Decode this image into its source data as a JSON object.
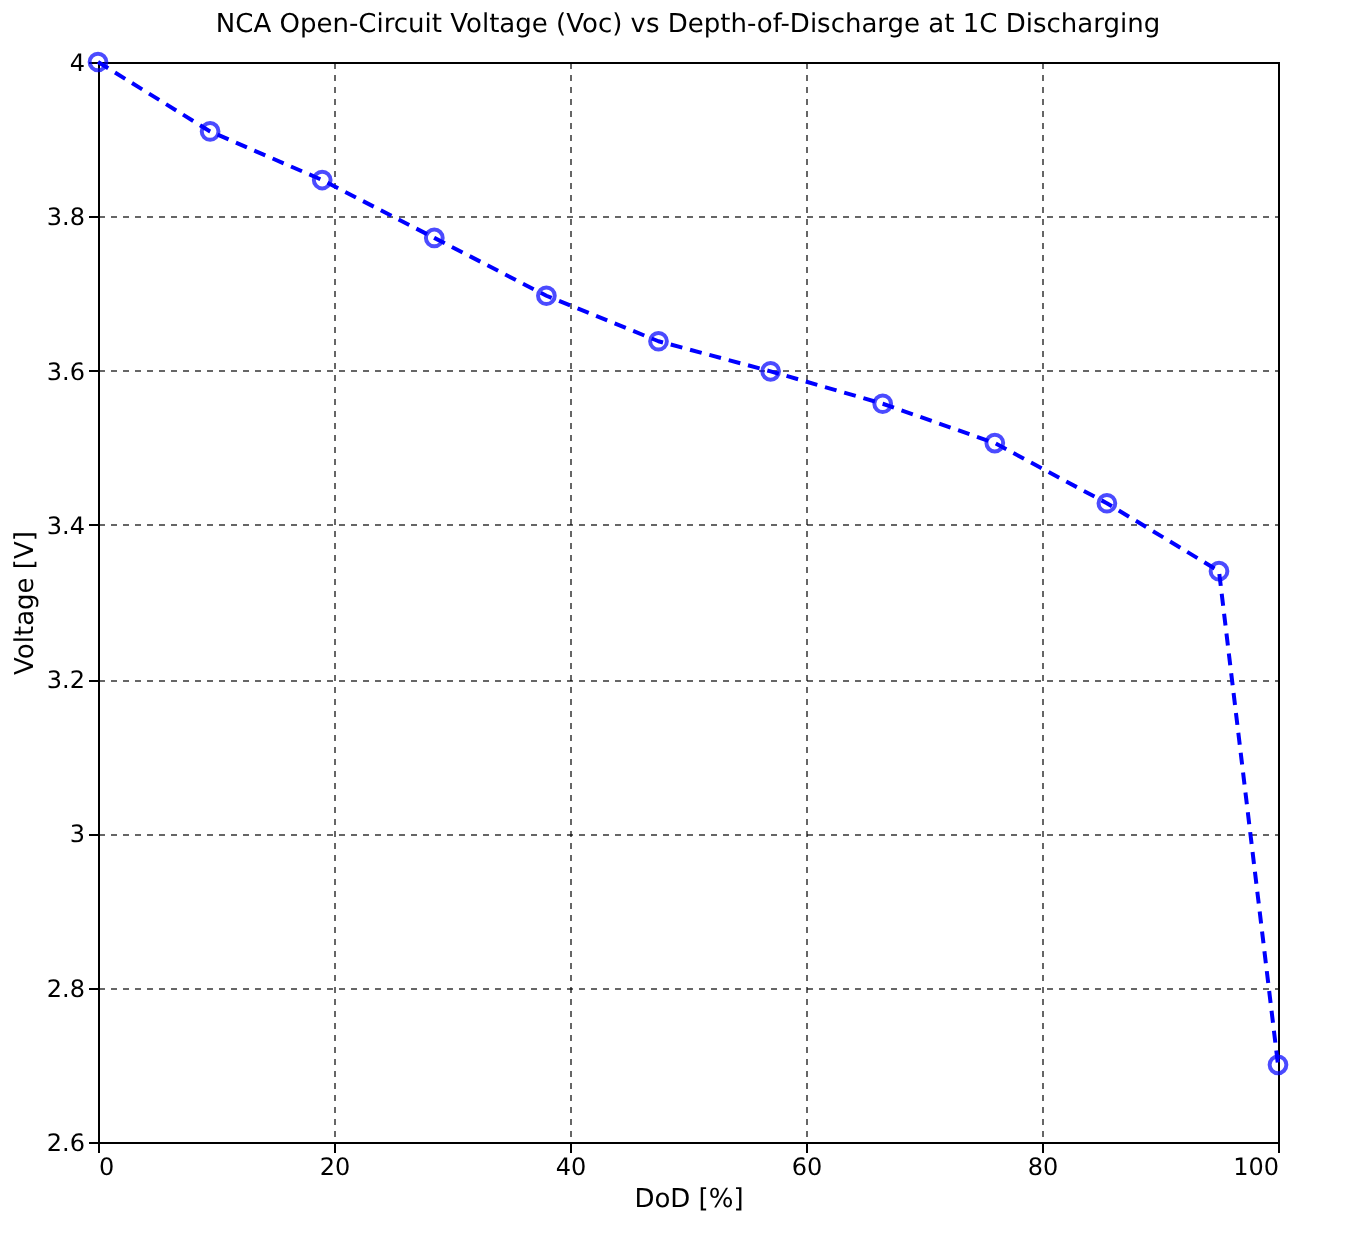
{
  "chart_data": {
    "type": "line",
    "title": "NCA Open-Circuit Voltage (Voc) vs Depth-of-Discharge at 1C Discharging",
    "xlabel": "DoD [%]",
    "ylabel": "Voltage [V]",
    "x": [
      0,
      9.5,
      19,
      28.5,
      38,
      47.5,
      57,
      66.5,
      76,
      85.5,
      95,
      100
    ],
    "series": [
      {
        "color": "#0000ff",
        "values": [
          4.0,
          3.91,
          3.847,
          3.772,
          3.697,
          3.638,
          3.599,
          3.557,
          3.506,
          3.428,
          3.34,
          2.7
        ]
      }
    ],
    "xlim": [
      0,
      100
    ],
    "xticks": [
      0,
      20,
      40,
      60,
      80,
      100
    ],
    "ylim": [
      2.6,
      4
    ],
    "yticks": [
      2.6,
      2.8,
      3,
      3.2,
      3.4,
      3.6,
      3.8,
      4
    ],
    "grid": true,
    "marker": "circle",
    "line_style": "dashed"
  }
}
